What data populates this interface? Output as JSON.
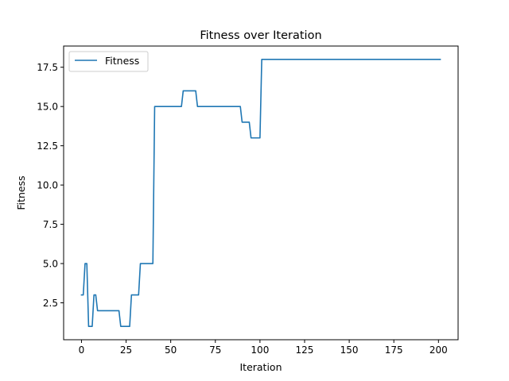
{
  "colors": {
    "series": "#1f77b4",
    "axes": "#000000",
    "background": "#ffffff"
  },
  "chart_data": {
    "type": "line",
    "title": "Fitness over Iteration",
    "xlabel": "Iteration",
    "ylabel": "Fitness",
    "xlim": [
      -10,
      211
    ],
    "ylim": [
      0.15,
      18.85
    ],
    "xticks": [
      0,
      25,
      50,
      75,
      100,
      125,
      150,
      175,
      200
    ],
    "xtick_labels": [
      "0",
      "25",
      "50",
      "75",
      "100",
      "125",
      "150",
      "175",
      "200"
    ],
    "yticks": [
      2.5,
      5.0,
      7.5,
      10.0,
      12.5,
      15.0,
      17.5
    ],
    "ytick_labels": [
      "2.5",
      "5.0",
      "7.5",
      "10.0",
      "12.5",
      "15.0",
      "17.5"
    ],
    "grid": false,
    "legend_position": "upper left",
    "series": [
      {
        "name": "Fitness",
        "x": [
          0,
          1,
          2,
          3,
          4,
          5,
          6,
          7,
          8,
          9,
          10,
          20,
          21,
          22,
          26,
          27,
          28,
          32,
          33,
          40,
          41,
          56,
          57,
          64,
          65,
          89,
          90,
          94,
          95,
          100,
          101,
          201
        ],
        "y": [
          3,
          3,
          5,
          5,
          1,
          1,
          1,
          3,
          3,
          2,
          2,
          2,
          2,
          1,
          1,
          1,
          3,
          3,
          5,
          5,
          15,
          15,
          16,
          16,
          15,
          15,
          14,
          14,
          13,
          13,
          18,
          18
        ]
      }
    ]
  }
}
